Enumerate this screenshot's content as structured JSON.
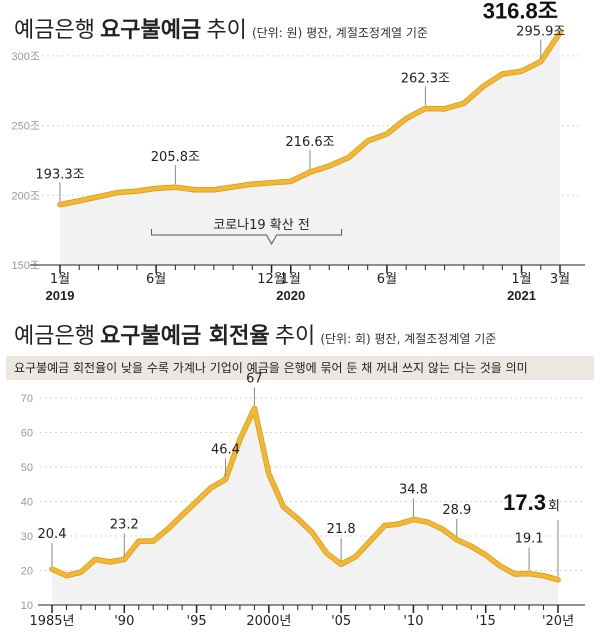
{
  "chart_data": [
    {
      "type": "line",
      "title": "예금은행 요구불예금 추이",
      "title_light": "예금은행",
      "title_bold": "요구불예금",
      "title_tail": "추이",
      "unit_note": "(단위: 원) 평잔, 계절조정계열 기준",
      "ylim": [
        150,
        320
      ],
      "yticks": [
        150,
        200,
        250,
        300
      ],
      "ytick_labels": [
        "150조",
        "200조",
        "250조",
        "300조"
      ],
      "x_count": 27,
      "values": [
        193.3,
        196,
        199,
        202,
        203,
        205,
        205.8,
        204,
        204,
        206,
        208,
        209,
        210,
        216.6,
        221,
        227,
        239,
        244,
        255,
        262.3,
        262,
        266,
        278,
        287,
        289,
        295.9,
        316.8
      ],
      "xticks": [
        {
          "i": 0,
          "label": "1월",
          "year": "2019"
        },
        {
          "i": 5,
          "label": "6월",
          "year": ""
        },
        {
          "i": 11,
          "label": "12월",
          "year": ""
        },
        {
          "i": 12,
          "label": "1월",
          "year": "2020"
        },
        {
          "i": 17,
          "label": "6월",
          "year": ""
        },
        {
          "i": 24,
          "label": "1월",
          "year": "2021"
        },
        {
          "i": 26,
          "label": "3월",
          "year": ""
        }
      ],
      "point_labels": [
        {
          "i": 0,
          "text": "193.3조"
        },
        {
          "i": 6,
          "text": "205.8조"
        },
        {
          "i": 13,
          "text": "216.6조"
        },
        {
          "i": 19,
          "text": "262.3조"
        },
        {
          "i": 25,
          "text": "295.9조"
        }
      ],
      "highlight_label": "316.8조",
      "annotation": "코로나19 확산 전",
      "colors": {
        "line": "#f4b731",
        "line_edge": "#d49a1a",
        "area": "#f2f2f2"
      }
    },
    {
      "type": "line",
      "title": "예금은행 요구불예금 회전율 추이",
      "title_light": "예금은행",
      "title_bold": "요구불예금 회전율",
      "title_tail": "추이",
      "unit_note": "(단위: 회) 평잔, 계절조정계열 기준",
      "note": "요구불예금 회전율이 낮을 수록 가계나 기업이 예금을 은행에 묶어 둔 채 꺼내 쓰지 않는 다는 것을 의미",
      "ylim": [
        10,
        70
      ],
      "yticks": [
        10,
        20,
        30,
        40,
        50,
        60,
        70
      ],
      "x": [
        1985,
        1986,
        1987,
        1988,
        1989,
        1990,
        1991,
        1992,
        1993,
        1994,
        1995,
        1996,
        1997,
        1998,
        1999,
        2000,
        2001,
        2002,
        2003,
        2004,
        2005,
        2006,
        2007,
        2008,
        2009,
        2010,
        2011,
        2012,
        2013,
        2014,
        2015,
        2016,
        2017,
        2018,
        2019,
        2020
      ],
      "values": [
        20.4,
        18.5,
        19.5,
        23.2,
        22.5,
        23.2,
        28.5,
        28.5,
        32,
        36,
        40,
        44,
        46.4,
        58,
        67,
        48,
        38.5,
        35,
        31,
        25,
        21.8,
        24,
        28.5,
        33,
        33.5,
        34.8,
        34,
        32,
        28.9,
        27,
        24.5,
        21.3,
        19,
        19.1,
        18.5,
        17.3
      ],
      "xticks": [
        {
          "year": 1985,
          "label": "1985년"
        },
        {
          "year": 1990,
          "label": "'90"
        },
        {
          "year": 1995,
          "label": "'95"
        },
        {
          "year": 2000,
          "label": "2000년"
        },
        {
          "year": 2005,
          "label": "'05"
        },
        {
          "year": 2010,
          "label": "'10"
        },
        {
          "year": 2015,
          "label": "'15"
        },
        {
          "year": 2020,
          "label": "'20년"
        }
      ],
      "point_labels": [
        {
          "year": 1985,
          "text": "20.4"
        },
        {
          "year": 1990,
          "text": "23.2"
        },
        {
          "year": 1997,
          "text": "46.4"
        },
        {
          "year": 1999,
          "text": "67"
        },
        {
          "year": 2005,
          "text": "21.8"
        },
        {
          "year": 2010,
          "text": "34.8"
        },
        {
          "year": 2013,
          "text": "28.9"
        },
        {
          "year": 2018,
          "text": "19.1"
        }
      ],
      "highlight_number": "17.3",
      "highlight_unit": "회",
      "colors": {
        "line": "#f4b731",
        "line_edge": "#d49a1a",
        "area": "#f2f2f2"
      }
    }
  ]
}
